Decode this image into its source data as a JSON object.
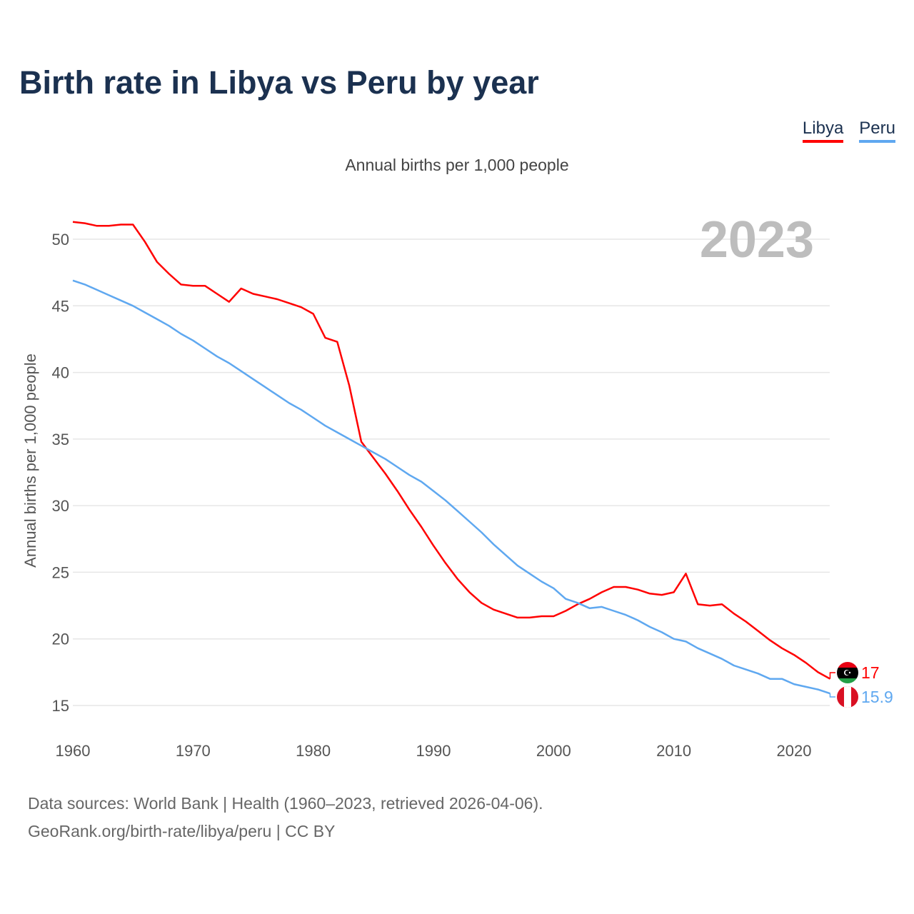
{
  "title": "Birth rate in Libya vs Peru by year",
  "subtitle": "Annual births per 1,000 people",
  "year_label": "2023",
  "source_line1": "Data sources: World Bank | Health (1960–2023, retrieved 2026-04-06).",
  "source_line2": "GeoRank.org/birth-rate/libya/peru | CC BY",
  "chart_data": {
    "type": "line",
    "title": "Birth rate in Libya vs Peru by year",
    "xlabel": "",
    "ylabel": "Annual births per 1,000 people",
    "xlim": [
      1960,
      2023
    ],
    "ylim": [
      14,
      52
    ],
    "yticks": [
      15,
      20,
      25,
      30,
      35,
      40,
      45,
      50
    ],
    "xticks": [
      1960,
      1970,
      1980,
      1990,
      2000,
      2010,
      2020
    ],
    "grid": true,
    "legend": "top-right",
    "x_start": 1960,
    "series": [
      {
        "name": "Libya",
        "color": "#ff0000",
        "end_label": "17",
        "values": [
          51.3,
          51.2,
          51.0,
          51.0,
          51.1,
          51.1,
          49.8,
          48.3,
          47.4,
          46.6,
          46.5,
          46.5,
          45.9,
          45.3,
          46.3,
          45.9,
          45.7,
          45.5,
          45.2,
          44.9,
          44.4,
          42.6,
          42.3,
          39.0,
          34.8,
          33.6,
          32.4,
          31.1,
          29.7,
          28.4,
          27.0,
          25.7,
          24.5,
          23.5,
          22.7,
          22.2,
          21.9,
          21.6,
          21.6,
          21.7,
          21.7,
          22.1,
          22.6,
          23.0,
          23.5,
          23.9,
          23.9,
          23.7,
          23.4,
          23.3,
          23.5,
          24.9,
          22.6,
          22.5,
          22.6,
          21.9,
          21.3,
          20.6,
          19.9,
          19.3,
          18.8,
          18.2,
          17.5,
          17.0
        ]
      },
      {
        "name": "Peru",
        "color": "#5fa8f0",
        "end_label": "15.9",
        "values": [
          46.9,
          46.6,
          46.2,
          45.8,
          45.4,
          45.0,
          44.5,
          44.0,
          43.5,
          42.9,
          42.4,
          41.8,
          41.2,
          40.7,
          40.1,
          39.5,
          38.9,
          38.3,
          37.7,
          37.2,
          36.6,
          36.0,
          35.5,
          35.0,
          34.5,
          34.0,
          33.5,
          32.9,
          32.3,
          31.8,
          31.1,
          30.4,
          29.6,
          28.8,
          28.0,
          27.1,
          26.3,
          25.5,
          24.9,
          24.3,
          23.8,
          23.0,
          22.7,
          22.3,
          22.4,
          22.1,
          21.8,
          21.4,
          20.9,
          20.5,
          20.0,
          19.8,
          19.3,
          18.9,
          18.5,
          18.0,
          17.7,
          17.4,
          17.0,
          17.0,
          16.6,
          16.4,
          16.2,
          15.9
        ]
      }
    ]
  }
}
